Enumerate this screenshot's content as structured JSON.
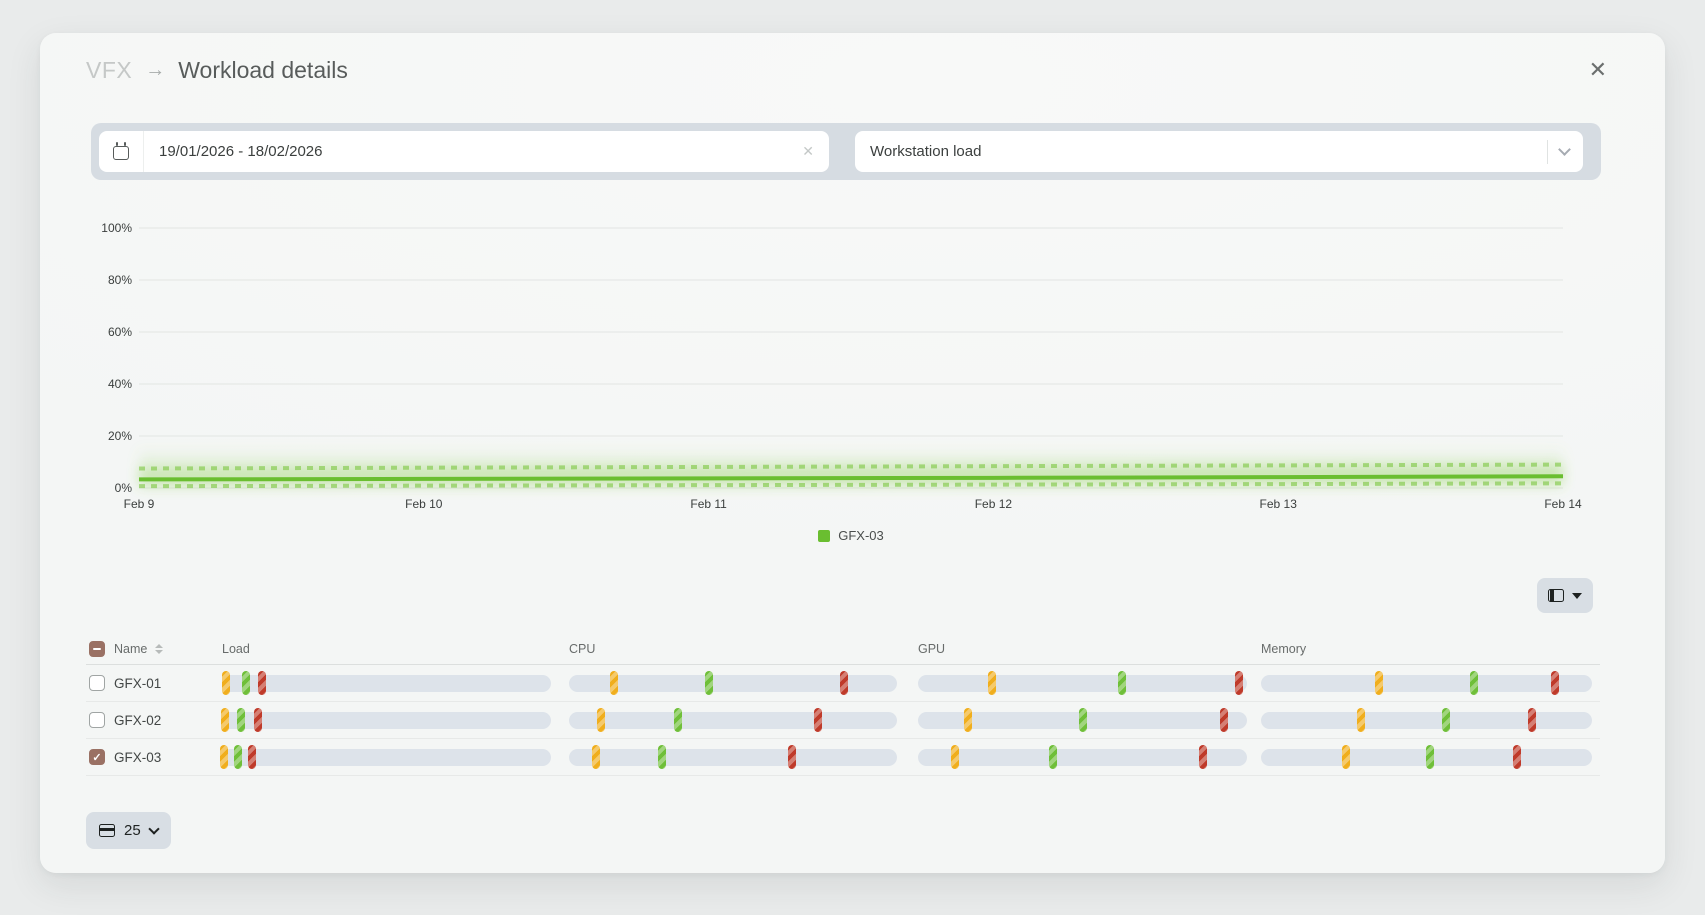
{
  "modal": {
    "breadcrumb": "VFX",
    "breadcrumb_separator": "→",
    "title": "Workload details"
  },
  "icons": {
    "close": "✕",
    "clear": "✕",
    "calendar": "calendar-outline",
    "chevron_down": "chevron-down",
    "columns": "table-columns",
    "rows": "table-rows",
    "sort": "sort-up-down",
    "caret_down": "▾"
  },
  "filters": {
    "date_range_value": "19/01/2026 - 18/02/2026",
    "metric_value": "Workstation load"
  },
  "chart_data": {
    "type": "line",
    "title": "",
    "xlabel": "",
    "ylabel": "",
    "x_labels": [
      "Feb 9",
      "Feb 10",
      "Feb 11",
      "Feb 12",
      "Feb 13",
      "Feb 14"
    ],
    "y_tick_labels": [
      "0%",
      "20%",
      "40%",
      "60%",
      "80%",
      "100%"
    ],
    "ylim": [
      0,
      100
    ],
    "grid": true,
    "legend": {
      "position": "bottom-center",
      "entries": [
        {
          "label": "GFX-03",
          "color": "#6abe30"
        }
      ]
    },
    "band_color": "#8bcf52",
    "series": [
      {
        "name": "GFX-03 max",
        "style": "dashed",
        "color": "#7cc63f",
        "values": [
          7.5,
          7.8,
          8.1,
          8.4,
          8.7,
          9.0
        ]
      },
      {
        "name": "GFX-03 avg",
        "style": "solid",
        "color": "#6abe30",
        "values": [
          3.3,
          3.5,
          3.7,
          3.9,
          4.2,
          4.5
        ]
      },
      {
        "name": "GFX-03 min",
        "style": "dashed",
        "color": "#7cc63f",
        "values": [
          0.7,
          0.9,
          1.1,
          1.3,
          1.5,
          1.8
        ]
      }
    ]
  },
  "table": {
    "select_all_state": "indeterminate",
    "checkbox_color": "#9a7164",
    "columns": [
      "Name",
      "Load",
      "CPU",
      "GPU",
      "Memory"
    ],
    "marker_colors": {
      "low": "#f0ae1d",
      "mid": "#6fbf39",
      "high": "#bf3a2a"
    },
    "rows": [
      {
        "name": "GFX-01",
        "checked": false,
        "load": [
          1.2,
          7.3,
          12.2
        ],
        "cpu": [
          13.7,
          42.7,
          83.8
        ],
        "gpu": [
          22.6,
          61.9,
          97.6
        ],
        "memory": [
          35.6,
          64.4,
          88.8
        ]
      },
      {
        "name": "GFX-02",
        "checked": false,
        "load": [
          0.9,
          5.8,
          11.0
        ],
        "cpu": [
          9.8,
          33.2,
          75.9
        ],
        "gpu": [
          15.2,
          50.3,
          93.0
        ],
        "memory": [
          30.2,
          55.9,
          81.9
        ]
      },
      {
        "name": "GFX-03",
        "checked": true,
        "load": [
          0.6,
          4.9,
          9.2
        ],
        "cpu": [
          8.2,
          28.4,
          68.0
        ],
        "gpu": [
          11.3,
          40.9,
          86.6
        ],
        "memory": [
          25.7,
          51.1,
          77.3
        ]
      }
    ]
  },
  "pagination": {
    "page_size": "25"
  }
}
